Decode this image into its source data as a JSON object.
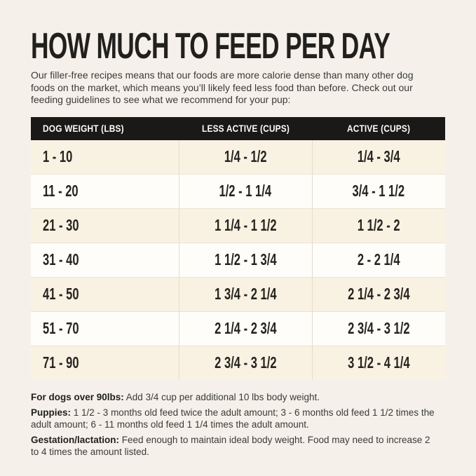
{
  "page": {
    "background": "#f5f1ea",
    "header_bg": "#1a1917",
    "row_cream_bg": "#f9f1e2",
    "row_white_bg": "#fefdfa",
    "text_dark": "#21201d"
  },
  "header": {
    "title": "HOW MUCH TO FEED PER DAY",
    "intro": "Our filler-free recipes means that our foods are more calorie dense than many other dog foods on the market, which means you’ll likely feed less food than before. Check out our feeding guidelines to see what we recommend for your pup:"
  },
  "table": {
    "columns": [
      "DOG WEIGHT (LBS)",
      "LESS ACTIVE (CUPS)",
      "ACTIVE (CUPS)"
    ],
    "rows": [
      {
        "weight": "1 - 10",
        "less_active": "1/4 - 1/2",
        "active": "1/4 - 3/4"
      },
      {
        "weight": "11 - 20",
        "less_active": "1/2 - 1 1/4",
        "active": "3/4 - 1 1/2"
      },
      {
        "weight": "21 - 30",
        "less_active": "1 1/4 - 1 1/2",
        "active": "1 1/2 - 2"
      },
      {
        "weight": "31 - 40",
        "less_active": "1 1/2 - 1 3/4",
        "active": "2 - 2 1/4"
      },
      {
        "weight": "41 - 50",
        "less_active": "1 3/4 - 2 1/4",
        "active": "2 1/4 - 2 3/4"
      },
      {
        "weight": "51 - 70",
        "less_active": "2 1/4 - 2 3/4",
        "active": "2 3/4 - 3 1/2"
      },
      {
        "weight": "71 - 90",
        "less_active": "2 3/4 - 3 1/2",
        "active": "3 1/2 - 4 1/4"
      }
    ]
  },
  "notes": [
    {
      "label": "For dogs over 90lbs:",
      "text": "Add 3/4 cup per additional 10 lbs body weight."
    },
    {
      "label": "Puppies:",
      "text": "1 1/2 - 3 months old feed twice the adult amount; 3 - 6 months old feed 1 1/2 times the adult amount; 6 - 11 months old feed 1 1/4 times the adult amount."
    },
    {
      "label": "Gestation/lactation:",
      "text": "Feed enough to maintain ideal body weight. Food may need to increase 2 to 4 times the amount listed."
    }
  ]
}
